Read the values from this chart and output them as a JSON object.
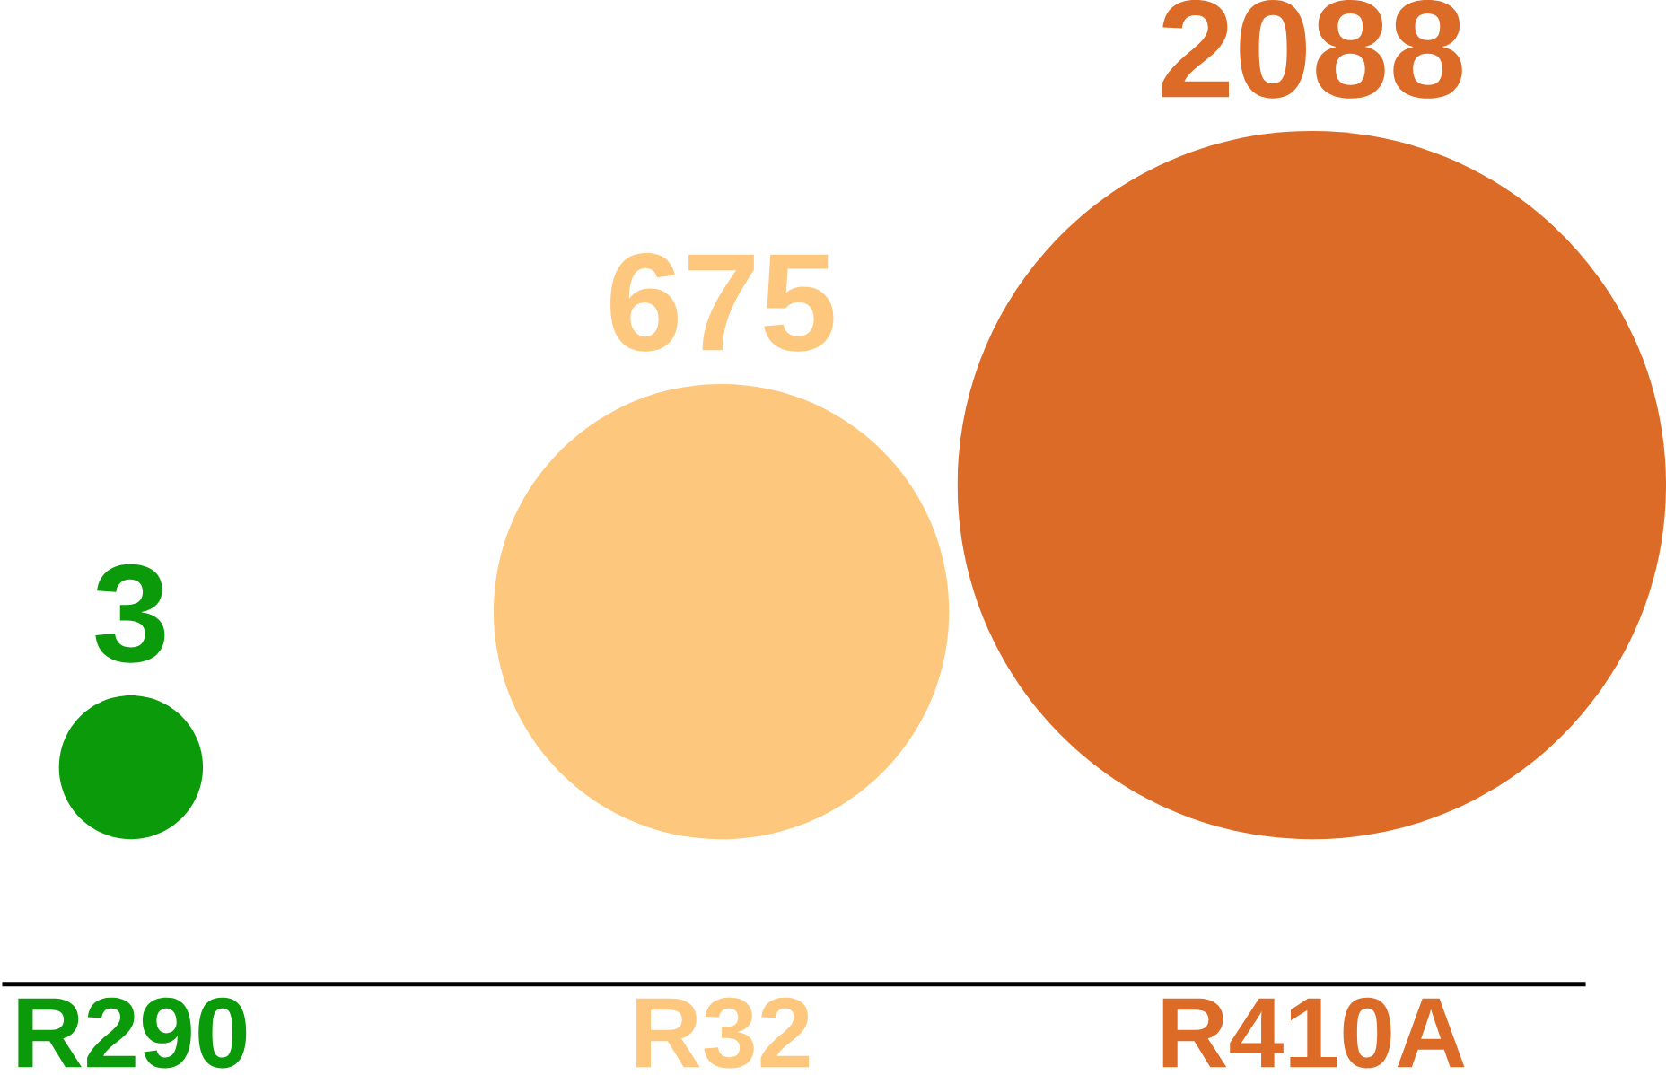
{
  "chart_data": {
    "type": "other",
    "categories": [
      "R290",
      "R32",
      "R410A"
    ],
    "values": [
      3,
      675,
      2088
    ],
    "colors": [
      "#0a9a0a",
      "#fdc77e",
      "#dc6b28"
    ],
    "data_labels": true
  }
}
